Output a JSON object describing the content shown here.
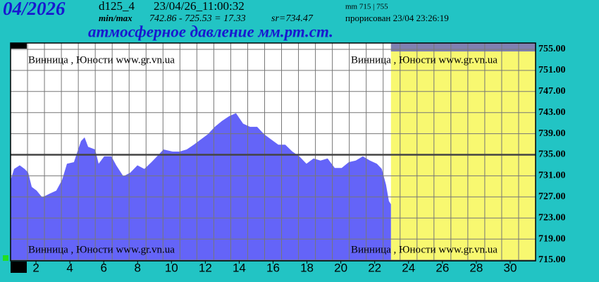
{
  "header": {
    "period": "04/2026",
    "station": "d125_4",
    "timestamp": "23/04/26_11:00:32",
    "minmax_label": "min/max",
    "minmax": "742.86 - 725.53 = 17.33",
    "mean": "sr=734.47",
    "scale": "mm 715 | 755",
    "drawn": "прорисован 23/04 23:26:19"
  },
  "chart_data": {
    "type": "area",
    "title": "атмосферное давление мм.рт.ст.",
    "annotations": [
      "Винница , Юности  www.gr.vn.ua",
      "Винница , Юности  www.gr.vn.ua",
      "Винница , Юности  www.gr.vn.ua",
      "Винница , Юности  www.gr.vn.ua"
    ],
    "x": [
      0.5,
      0.71,
      1.04,
      1.33,
      1.54,
      1.75,
      2.04,
      2.37,
      2.79,
      3.2,
      3.54,
      3.83,
      4.24,
      4.45,
      4.66,
      4.87,
      5.08,
      5.49,
      5.7,
      6.03,
      6.45,
      6.74,
      7.16,
      7.57,
      7.99,
      8.4,
      8.82,
      9.24,
      9.53,
      10.07,
      10.48,
      10.9,
      11.32,
      11.73,
      12.15,
      12.56,
      12.98,
      13.4,
      13.81,
      14.23,
      14.64,
      15.06,
      15.47,
      15.89,
      16.31,
      16.72,
      17.14,
      17.55,
      17.97,
      18.39,
      18.8,
      19.22,
      19.64,
      20.05,
      20.47,
      20.88,
      21.3,
      21.72,
      22.13,
      22.42,
      22.67,
      22.84,
      22.96
    ],
    "values": [
      730.2,
      732.3,
      733,
      732.3,
      731.6,
      728.9,
      728.2,
      726.9,
      727.6,
      728.2,
      730.2,
      733.3,
      733.6,
      735.6,
      737.6,
      738.3,
      736.5,
      736,
      733.3,
      734.7,
      734.7,
      733,
      730.9,
      731.6,
      733,
      732.3,
      733.6,
      735,
      736,
      735.6,
      735.6,
      736,
      736.9,
      737.9,
      738.9,
      740.3,
      741.4,
      742.3,
      742.9,
      740.9,
      740.3,
      740.3,
      738.9,
      737.9,
      736.9,
      736.9,
      735.6,
      734.7,
      733.3,
      734.3,
      733.9,
      734.3,
      732.5,
      732.5,
      733.6,
      733.9,
      734.7,
      733.9,
      733.3,
      732.3,
      729.3,
      726.2,
      725.6
    ],
    "color": "#6464f8",
    "xlim": [
      0.5,
      31.5
    ],
    "xticks": [
      2,
      4,
      6,
      8,
      10,
      12,
      14,
      16,
      18,
      20,
      22,
      24,
      26,
      28,
      30
    ],
    "ylim": [
      715,
      755
    ],
    "yticks": [
      {
        "value": 755,
        "label": "755.00"
      },
      {
        "value": 751,
        "label": "751.00"
      },
      {
        "value": 747,
        "label": "747.00"
      },
      {
        "value": 743,
        "label": "743.00"
      },
      {
        "value": 739,
        "label": "739.00"
      },
      {
        "value": 735,
        "label": "735.00"
      },
      {
        "value": 731,
        "label": "731.00"
      },
      {
        "value": 727,
        "label": "727.00"
      },
      {
        "value": 723,
        "label": "723.00"
      },
      {
        "value": 719,
        "label": "719.00"
      },
      {
        "value": 715,
        "label": "715.00"
      }
    ],
    "ref_line": 735,
    "highlight_x": [
      22.96,
      31.5
    ],
    "highlight_color": "#f8f870",
    "grid": true
  }
}
